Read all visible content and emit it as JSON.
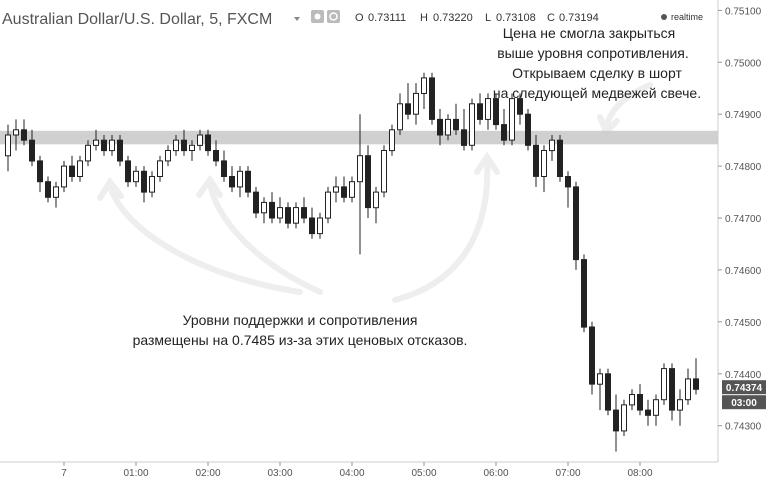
{
  "header": {
    "title": "Australian Dollar/U.S. Dollar, 5, FXCM",
    "open_label": "O",
    "open_value": "0.73111",
    "high_label": "H",
    "high_value": "0.73220",
    "low_label": "L",
    "low_value": "0.73108",
    "close_label": "C",
    "close_value": "0.73194",
    "realtime_label": "realtime"
  },
  "annotations": {
    "resistance_note": [
      "Цена не смогла закрыться",
      "выше уровня сопротивления.",
      "Открываем сделку в шорт",
      "на следующей медвежей свече."
    ],
    "support_note": [
      "Уровни поддержки и сопротивления",
      "размещены на 0.7485 из-за этих ценовых отсказов."
    ]
  },
  "price_tags": {
    "last": "0.74374",
    "timer": "03:00"
  },
  "colors": {
    "band": "#c8c8c8",
    "candle_stroke": "#222222",
    "bull_fill": "#ffffff",
    "bear_fill": "#222222",
    "arrow": "#eeeeee",
    "tag_bg": "#555555"
  },
  "chart_data": {
    "type": "candlestick",
    "title": "Australian Dollar/U.S. Dollar, 5, FXCM",
    "y_ticks": [
      0.751,
      0.75,
      0.749,
      0.748,
      0.747,
      0.746,
      0.745,
      0.744,
      0.743
    ],
    "y_tick_labels": [
      "0.75100",
      "0.75000",
      "0.74900",
      "0.74800",
      "0.74700",
      "0.74600",
      "0.74500",
      "0.74400",
      "0.74300"
    ],
    "x_ticks": [
      {
        "label": "7",
        "index": 7
      },
      {
        "label": "01:00",
        "index": 16
      },
      {
        "label": "02:00",
        "index": 25
      },
      {
        "label": "03:00",
        "index": 34
      },
      {
        "label": "04:00",
        "index": 43
      },
      {
        "label": "05:00",
        "index": 52
      },
      {
        "label": "06:00",
        "index": 61
      },
      {
        "label": "07:00",
        "index": 70
      },
      {
        "label": "08:00",
        "index": 79
      }
    ],
    "ylim": [
      0.7423,
      0.7512
    ],
    "level_band": [
      0.74842,
      0.74868
    ],
    "level": 0.7485,
    "last_price": 0.74374,
    "candles": [
      [
        0.7482,
        0.7488,
        0.7479,
        0.7486
      ],
      [
        0.7486,
        0.7489,
        0.7483,
        0.7487
      ],
      [
        0.7487,
        0.7489,
        0.7484,
        0.7485
      ],
      [
        0.7485,
        0.7487,
        0.748,
        0.7481
      ],
      [
        0.7481,
        0.7482,
        0.7475,
        0.7477
      ],
      [
        0.7477,
        0.7478,
        0.7473,
        0.7474
      ],
      [
        0.7474,
        0.7477,
        0.7472,
        0.7476
      ],
      [
        0.7476,
        0.7481,
        0.7475,
        0.748
      ],
      [
        0.748,
        0.7482,
        0.7477,
        0.7478
      ],
      [
        0.7478,
        0.7482,
        0.7477,
        0.7481
      ],
      [
        0.7481,
        0.7485,
        0.748,
        0.7484
      ],
      [
        0.7484,
        0.7487,
        0.7483,
        0.7485
      ],
      [
        0.7485,
        0.7486,
        0.7482,
        0.7483
      ],
      [
        0.7483,
        0.7486,
        0.7482,
        0.7485
      ],
      [
        0.7485,
        0.7486,
        0.748,
        0.7481
      ],
      [
        0.7481,
        0.7482,
        0.7476,
        0.7477
      ],
      [
        0.7477,
        0.748,
        0.7476,
        0.7479
      ],
      [
        0.7479,
        0.748,
        0.7473,
        0.7475
      ],
      [
        0.7475,
        0.7479,
        0.7474,
        0.7478
      ],
      [
        0.7478,
        0.7482,
        0.7477,
        0.7481
      ],
      [
        0.7481,
        0.7484,
        0.748,
        0.7483
      ],
      [
        0.7483,
        0.7486,
        0.7482,
        0.7485
      ],
      [
        0.7485,
        0.7487,
        0.7482,
        0.7483
      ],
      [
        0.7483,
        0.7485,
        0.7481,
        0.7484
      ],
      [
        0.7484,
        0.7487,
        0.7483,
        0.7486
      ],
      [
        0.7486,
        0.7487,
        0.7482,
        0.7483
      ],
      [
        0.7483,
        0.7485,
        0.748,
        0.7481
      ],
      [
        0.7481,
        0.7483,
        0.7477,
        0.7478
      ],
      [
        0.7478,
        0.748,
        0.7475,
        0.7476
      ],
      [
        0.7476,
        0.748,
        0.7474,
        0.7479
      ],
      [
        0.7479,
        0.748,
        0.7474,
        0.7475
      ],
      [
        0.7475,
        0.7476,
        0.747,
        0.7471
      ],
      [
        0.7471,
        0.7474,
        0.7469,
        0.7473
      ],
      [
        0.7473,
        0.7475,
        0.7469,
        0.747
      ],
      [
        0.747,
        0.7474,
        0.7469,
        0.7472
      ],
      [
        0.7472,
        0.7473,
        0.7468,
        0.7469
      ],
      [
        0.7469,
        0.7473,
        0.7468,
        0.7472
      ],
      [
        0.7472,
        0.7474,
        0.7469,
        0.747
      ],
      [
        0.747,
        0.7472,
        0.7466,
        0.7467
      ],
      [
        0.7467,
        0.7471,
        0.7466,
        0.747
      ],
      [
        0.747,
        0.7476,
        0.7469,
        0.7475
      ],
      [
        0.7475,
        0.7478,
        0.7473,
        0.7476
      ],
      [
        0.7476,
        0.7478,
        0.7473,
        0.7474
      ],
      [
        0.7474,
        0.7478,
        0.7473,
        0.7477
      ],
      [
        0.7477,
        0.749,
        0.7463,
        0.7482
      ],
      [
        0.7482,
        0.7484,
        0.747,
        0.7472
      ],
      [
        0.7472,
        0.7476,
        0.7469,
        0.7475
      ],
      [
        0.7475,
        0.7484,
        0.7474,
        0.7483
      ],
      [
        0.7483,
        0.7488,
        0.7482,
        0.7487
      ],
      [
        0.7487,
        0.7494,
        0.7486,
        0.7492
      ],
      [
        0.7492,
        0.7496,
        0.7489,
        0.749
      ],
      [
        0.749,
        0.7496,
        0.7488,
        0.7494
      ],
      [
        0.7494,
        0.7498,
        0.7491,
        0.7497
      ],
      [
        0.7497,
        0.7498,
        0.7488,
        0.7489
      ],
      [
        0.7489,
        0.7491,
        0.7484,
        0.7486
      ],
      [
        0.7486,
        0.749,
        0.7485,
        0.7489
      ],
      [
        0.7489,
        0.7492,
        0.7486,
        0.7487
      ],
      [
        0.7487,
        0.7491,
        0.7483,
        0.7484
      ],
      [
        0.7484,
        0.7493,
        0.7483,
        0.7492
      ],
      [
        0.7492,
        0.7494,
        0.7488,
        0.7489
      ],
      [
        0.7489,
        0.7494,
        0.7487,
        0.7493
      ],
      [
        0.7493,
        0.7494,
        0.7487,
        0.7488
      ],
      [
        0.7488,
        0.7491,
        0.7484,
        0.7485
      ],
      [
        0.7485,
        0.7494,
        0.7484,
        0.7493
      ],
      [
        0.7493,
        0.7494,
        0.7488,
        0.749
      ],
      [
        0.749,
        0.7491,
        0.7483,
        0.7484
      ],
      [
        0.7484,
        0.7486,
        0.7476,
        0.7478
      ],
      [
        0.7478,
        0.7484,
        0.7475,
        0.7483
      ],
      [
        0.7483,
        0.7486,
        0.7481,
        0.7485
      ],
      [
        0.7485,
        0.7486,
        0.7477,
        0.7478
      ],
      [
        0.7478,
        0.7479,
        0.7472,
        0.7476
      ],
      [
        0.7476,
        0.7477,
        0.746,
        0.7462
      ],
      [
        0.7462,
        0.7463,
        0.7448,
        0.7449
      ],
      [
        0.7449,
        0.745,
        0.7436,
        0.7438
      ],
      [
        0.7438,
        0.7441,
        0.7433,
        0.744
      ],
      [
        0.744,
        0.7441,
        0.7432,
        0.7433
      ],
      [
        0.7433,
        0.7436,
        0.7425,
        0.7429
      ],
      [
        0.7429,
        0.7435,
        0.7428,
        0.7434
      ],
      [
        0.7434,
        0.7437,
        0.7433,
        0.7436
      ],
      [
        0.7436,
        0.7438,
        0.7432,
        0.7433
      ],
      [
        0.7433,
        0.7435,
        0.743,
        0.7432
      ],
      [
        0.7432,
        0.7436,
        0.743,
        0.7435
      ],
      [
        0.7435,
        0.7442,
        0.7434,
        0.7441
      ],
      [
        0.7441,
        0.7442,
        0.7431,
        0.7433
      ],
      [
        0.7433,
        0.7437,
        0.743,
        0.7435
      ],
      [
        0.7435,
        0.7441,
        0.7434,
        0.7439
      ],
      [
        0.7439,
        0.7443,
        0.7436,
        0.7437
      ]
    ]
  }
}
